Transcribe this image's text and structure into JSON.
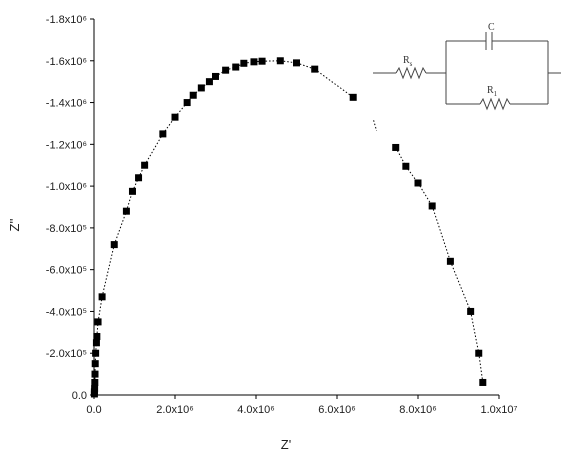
{
  "chart_data": {
    "type": "scatter",
    "xlabel": "Z'",
    "ylabel": "Z''",
    "xlim": [
      0,
      10000000
    ],
    "ylim": [
      0,
      -1800000
    ],
    "x_ticks": [
      {
        "value": 0,
        "label": "0.0"
      },
      {
        "value": 2000000,
        "label": "2.0x10⁶"
      },
      {
        "value": 4000000,
        "label": "4.0x10⁶"
      },
      {
        "value": 6000000,
        "label": "6.0x10⁶"
      },
      {
        "value": 8000000,
        "label": "8.0x10⁶"
      },
      {
        "value": 10000000,
        "label": "1.0x10⁷"
      }
    ],
    "y_ticks": [
      {
        "value": 0,
        "label": "0.0"
      },
      {
        "value": -200000,
        "label": "-2.0x10⁵"
      },
      {
        "value": -400000,
        "label": "-4.0x10⁵"
      },
      {
        "value": -600000,
        "label": "-6.0x10⁵"
      },
      {
        "value": -800000,
        "label": "-8.0x10⁵"
      },
      {
        "value": -1000000,
        "label": "-1.0x10⁶"
      },
      {
        "value": -1200000,
        "label": "-1.2x10⁶"
      },
      {
        "value": -1400000,
        "label": "-1.4x10⁶"
      },
      {
        "value": -1600000,
        "label": "-1.6x10⁶"
      },
      {
        "value": -1800000,
        "label": "-1.8x10⁶"
      }
    ],
    "grid": false,
    "marker": "square",
    "line_style": "dotted",
    "series": [
      {
        "points": [
          [
            10000,
            -5000
          ],
          [
            10000,
            -15000
          ],
          [
            15000,
            -30000
          ],
          [
            20000,
            -60000
          ],
          [
            25000,
            -100000
          ],
          [
            30000,
            -150000
          ],
          [
            40000,
            -200000
          ],
          [
            60000,
            -250000
          ],
          [
            70000,
            -280000
          ],
          [
            100000,
            -350000
          ],
          [
            200000,
            -470000
          ],
          [
            500000,
            -720000
          ],
          [
            800000,
            -880000
          ],
          [
            950000,
            -975000
          ],
          [
            1100000,
            -1040000
          ],
          [
            1250000,
            -1100000
          ],
          [
            1700000,
            -1250000
          ],
          [
            2000000,
            -1330000
          ],
          [
            2300000,
            -1400000
          ],
          [
            2450000,
            -1435000
          ],
          [
            2650000,
            -1470000
          ],
          [
            2850000,
            -1500000
          ],
          [
            3000000,
            -1525000
          ],
          [
            3250000,
            -1555000
          ],
          [
            3500000,
            -1570000
          ],
          [
            3700000,
            -1588000
          ],
          [
            3950000,
            -1595000
          ],
          [
            4150000,
            -1598000
          ],
          [
            4600000,
            -1600000
          ],
          [
            5000000,
            -1590000
          ],
          [
            5450000,
            -1560000
          ],
          [
            6400000,
            -1425000
          ],
          [
            7450000,
            -1185000
          ],
          [
            7700000,
            -1095000
          ],
          [
            8000000,
            -1015000
          ],
          [
            8350000,
            -905000
          ],
          [
            8800000,
            -640000
          ],
          [
            9300000,
            -400000
          ],
          [
            9500000,
            -200000
          ],
          [
            9600000,
            -60000
          ]
        ]
      }
    ],
    "gap_segments": [
      [
        6400000,
        7450000
      ]
    ],
    "inset": {
      "type": "equivalent-circuit",
      "labels": [
        "R",
        "C",
        "R"
      ],
      "subscripts": [
        "s",
        "",
        "1"
      ]
    }
  }
}
